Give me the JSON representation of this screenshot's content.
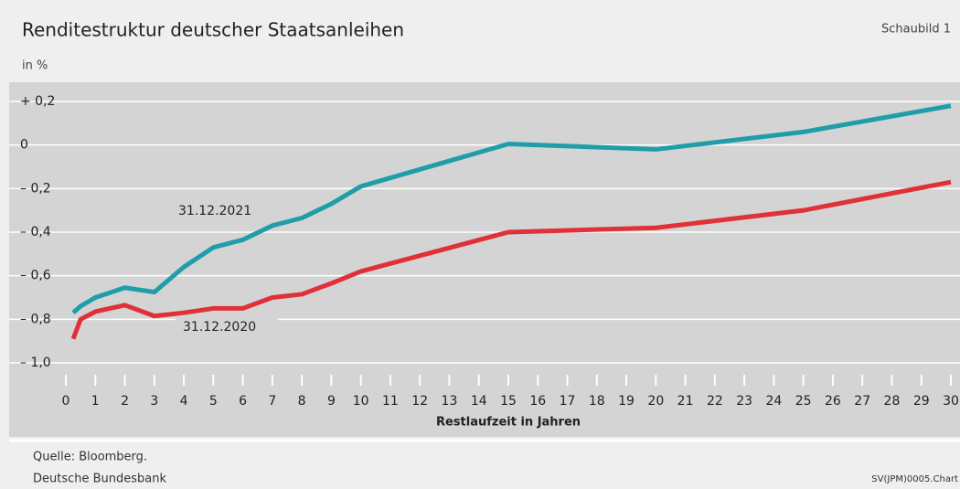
{
  "chart_data": {
    "type": "line",
    "title": "Renditestruktur deutscher Staatsanleihen",
    "figure_label": "Schaubild 1",
    "y_unit": "in %",
    "xlabel": "Restlaufzeit in Jahren",
    "source": "Quelle: Bloomberg.",
    "publisher": "Deutsche Bundesbank",
    "chart_id": "SV(JPM)0005.Chart",
    "xlim": [
      0,
      30
    ],
    "xticks": [
      0,
      1,
      2,
      3,
      4,
      5,
      6,
      7,
      8,
      9,
      10,
      11,
      12,
      13,
      14,
      15,
      16,
      17,
      18,
      19,
      20,
      21,
      22,
      23,
      24,
      25,
      26,
      27,
      28,
      29,
      30
    ],
    "ylim": [
      -1.0,
      0.2
    ],
    "yticks": [
      {
        "value": 0.2,
        "label": "+ 0,2"
      },
      0,
      {
        "value": -0.2,
        "label": "– 0,2"
      },
      {
        "value": -0.4,
        "label": "– 0,4"
      },
      {
        "value": -0.6,
        "label": "– 0,6"
      },
      {
        "value": -0.8,
        "label": "– 0,8"
      },
      {
        "value": -1.0,
        "label": "– 1,0"
      }
    ],
    "grid": true,
    "series": [
      {
        "name": "31.12.2021",
        "color": "#1f9ea8",
        "x": [
          0.25,
          0.5,
          1,
          2,
          3,
          4,
          5,
          6,
          7,
          8,
          9,
          10,
          15,
          20,
          25,
          30
        ],
        "values": [
          -0.77,
          -0.74,
          -0.7,
          -0.655,
          -0.675,
          -0.56,
          -0.47,
          -0.435,
          -0.37,
          -0.335,
          -0.27,
          -0.19,
          0.005,
          -0.02,
          0.06,
          0.18
        ]
      },
      {
        "name": "31.12.2020",
        "color": "#e03038",
        "x": [
          0.25,
          0.5,
          1,
          2,
          3,
          4,
          5,
          6,
          7,
          8,
          9,
          10,
          15,
          20,
          25,
          30
        ],
        "values": [
          -0.89,
          -0.8,
          -0.765,
          -0.735,
          -0.785,
          -0.77,
          -0.75,
          -0.75,
          -0.7,
          -0.685,
          -0.635,
          -0.58,
          -0.4,
          -0.38,
          -0.3,
          -0.17
        ]
      }
    ]
  }
}
